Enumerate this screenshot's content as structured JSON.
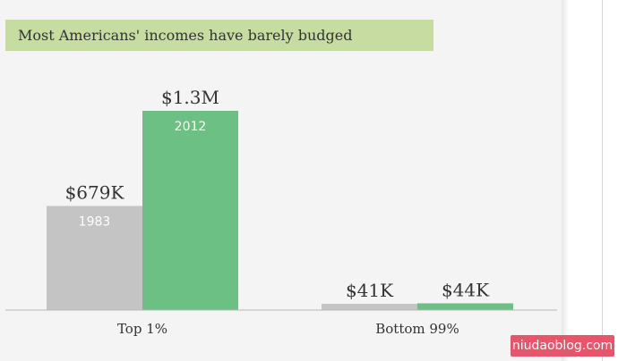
{
  "chart_data": {
    "type": "bar",
    "title": "Most Americans' incomes have barely budged",
    "categories": [
      "Top 1%",
      "Bottom 99%"
    ],
    "series": [
      {
        "name": "1983",
        "color": "#c4c4c4",
        "values": [
          679,
          41
        ],
        "labels": [
          "$679K",
          "$41K"
        ]
      },
      {
        "name": "2012",
        "color": "#6cc083",
        "values": [
          1300,
          44
        ],
        "labels": [
          "$1.3M",
          "$44K"
        ]
      }
    ],
    "ylabel": "",
    "xlabel": "",
    "ylim": [
      0,
      1300
    ],
    "grid": false,
    "legend": "none"
  },
  "watermark": "niudaoblog.com"
}
